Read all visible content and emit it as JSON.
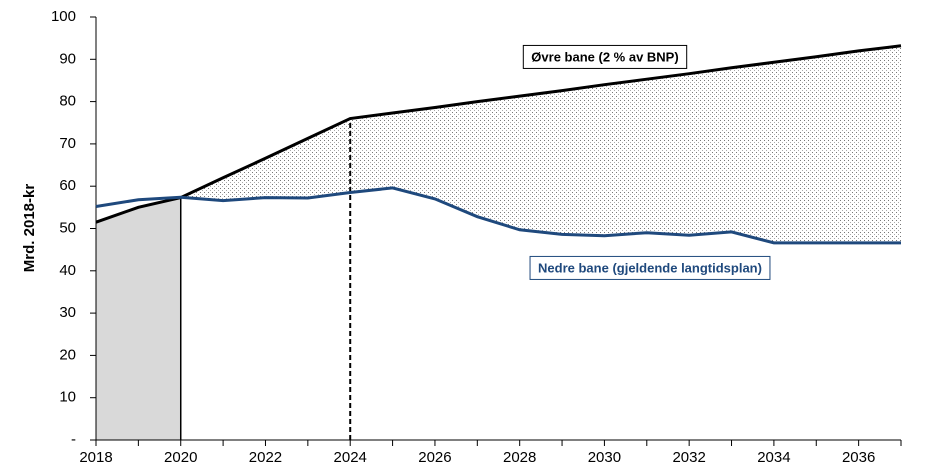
{
  "chart_data": {
    "type": "line",
    "y_label": "Mrd. 2018-kr",
    "x": [
      2018,
      2019,
      2020,
      2021,
      2022,
      2023,
      2024,
      2025,
      2026,
      2027,
      2028,
      2029,
      2030,
      2031,
      2032,
      2033,
      2034,
      2035,
      2036,
      2037
    ],
    "series": [
      {
        "name": "Øvre bane (2 % av BNP)",
        "color": "#000000",
        "values": [
          51.5,
          55,
          57.3,
          62,
          66.6,
          71.3,
          76,
          77.3,
          78.6,
          80,
          81.3,
          82.6,
          84,
          85.3,
          86.6,
          88,
          89.3,
          90.6,
          92,
          93.2
        ]
      },
      {
        "name": "Nedre bane (gjeldende langtidsplan)",
        "color": "#1f497d",
        "values": [
          55.2,
          56.8,
          57.4,
          56.6,
          57.3,
          57.2,
          58.5,
          59.6,
          57,
          52.8,
          49.7,
          48.6,
          48.3,
          49,
          48.4,
          49.2,
          46.6,
          46.6,
          46.6,
          46.6
        ]
      }
    ],
    "shaded_region": [
      2018,
      2020
    ],
    "dashed_line_x": 2024,
    "xlim": [
      2018,
      2037
    ],
    "xticks": [
      2018,
      2020,
      2022,
      2024,
      2026,
      2028,
      2030,
      2032,
      2034,
      2036
    ],
    "ylim": [
      0,
      100
    ],
    "yticks": [
      {
        "value": 0,
        "label": "-"
      },
      10,
      20,
      30,
      40,
      50,
      60,
      70,
      80,
      90,
      100
    ]
  }
}
